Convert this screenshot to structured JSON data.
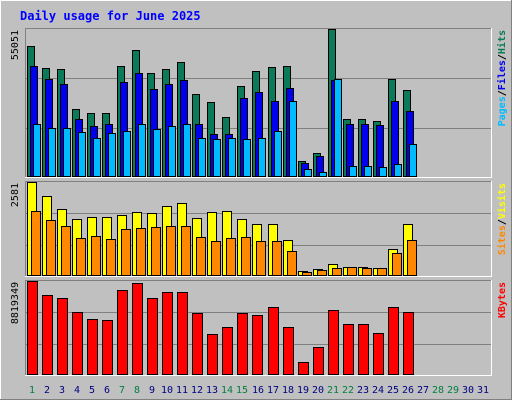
{
  "chart_data": {
    "type": "bar",
    "title": "Daily usage for June 2025",
    "categories": [
      "1",
      "2",
      "3",
      "4",
      "5",
      "6",
      "7",
      "8",
      "9",
      "10",
      "11",
      "12",
      "13",
      "14",
      "15",
      "16",
      "17",
      "18",
      "19",
      "20",
      "21",
      "22",
      "23",
      "24",
      "25",
      "26",
      "27",
      "28",
      "29",
      "30",
      "31"
    ],
    "weekend_days": [
      "1",
      "7",
      "8",
      "14",
      "15",
      "21",
      "22",
      "28",
      "29"
    ],
    "panels": [
      {
        "id": "requests",
        "max_label": "55051",
        "ylim": [
          0,
          55051
        ],
        "grid": true,
        "legend": [
          "Pages",
          "/",
          "Files",
          "/",
          "Hits"
        ],
        "series": [
          {
            "name": "Hits",
            "color": "#0a7a58",
            "values": [
              48600,
              40600,
              40300,
              25400,
              23900,
              23900,
              41200,
              47100,
              38800,
              40300,
              42700,
              30900,
              28000,
              22400,
              33900,
              39400,
              40900,
              41200,
              5900,
              8800,
              57100,
              21700,
              21700,
              21000,
              36300,
              32200,
              0,
              0,
              0,
              0,
              0
            ]
          },
          {
            "name": "Files",
            "color": "#0000ee",
            "values": [
              41300,
              36400,
              34700,
              21600,
              18900,
              19600,
              35200,
              38700,
              32600,
              34700,
              36200,
              19600,
              16100,
              16100,
              29200,
              31600,
              28300,
              33000,
              5200,
              7900,
              36200,
              19800,
              19800,
              19300,
              28300,
              24700,
              0,
              0,
              0,
              0,
              0
            ]
          },
          {
            "name": "Pages",
            "color": "#00bbff",
            "values": [
              19600,
              18100,
              18100,
              16600,
              14600,
              16300,
              17000,
              19800,
              17700,
              19100,
              19800,
              14600,
              14100,
              14600,
              14100,
              14600,
              17000,
              28300,
              2900,
              1800,
              36400,
              4000,
              4100,
              3900,
              5000,
              12400,
              0,
              0,
              0,
              0,
              0
            ]
          }
        ]
      },
      {
        "id": "visits",
        "max_label": "2581",
        "ylim": [
          0,
          2581
        ],
        "grid": true,
        "legend": [
          "Sites",
          "/",
          "Visits"
        ],
        "series": [
          {
            "name": "Visits",
            "color": "#ffff00",
            "values": [
              2590,
              2190,
              1830,
              1570,
              1610,
              1610,
              1680,
              1770,
              1720,
              1930,
              2000,
              1590,
              1770,
              1790,
              1560,
              1420,
              1420,
              1000,
              150,
              200,
              320,
              240,
              240,
              230,
              750,
              1420,
              0,
              0,
              0,
              0,
              0
            ]
          },
          {
            "name": "Sites",
            "color": "#ff8800",
            "values": [
              1790,
              1540,
              1370,
              1050,
              1090,
              1020,
              1290,
              1320,
              1340,
              1370,
              1370,
              1060,
              950,
              1040,
              1070,
              950,
              960,
              700,
              110,
              160,
              220,
              240,
              210,
              210,
              640,
              1000,
              0,
              0,
              0,
              0,
              0
            ]
          }
        ]
      },
      {
        "id": "kbytes",
        "max_label": "8819349",
        "ylim": [
          0,
          8819349
        ],
        "grid": true,
        "legend": [
          "KBytes"
        ],
        "series": [
          {
            "name": "KBytes",
            "color": "#ff0000",
            "values": [
              8800000,
              7500000,
              7200000,
              5900000,
              5300000,
              5200000,
              8000000,
              8600000,
              7200000,
              7800000,
              7800000,
              5800000,
              3800000,
              4500000,
              5800000,
              5600000,
              6400000,
              4500000,
              1200000,
              2600000,
              6100000,
              4800000,
              4800000,
              3900000,
              6400000,
              5900000,
              0,
              0,
              0,
              0,
              0
            ]
          }
        ]
      }
    ]
  },
  "colors": {
    "background": "#c0c0c0",
    "title": "#0000ff",
    "max_label": "#000000",
    "weekday_label": "#000080",
    "weekend_label": "#008040"
  }
}
